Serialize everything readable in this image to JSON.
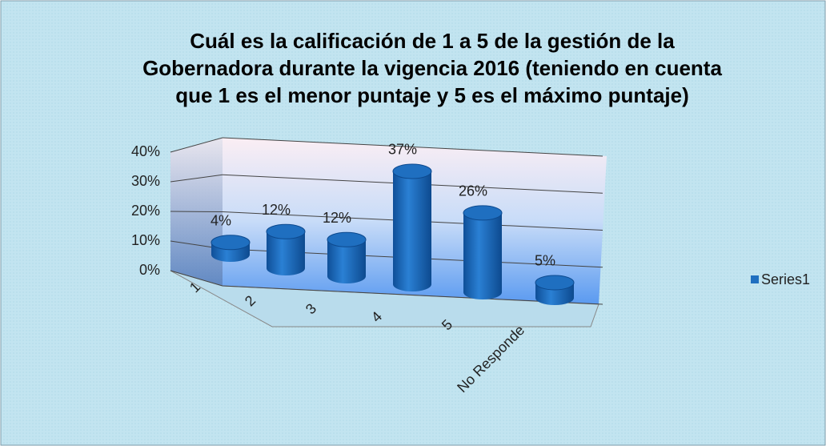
{
  "chart_data": {
    "type": "bar3d",
    "title": "Cuál es la calificación de 1 a 5 de la gestión de la Gobernadora durante la vigencia 2016 (teniendo en cuenta que 1 es el menor puntaje y 5 es el máximo puntaje)",
    "categories": [
      "1",
      "2",
      "3",
      "4",
      "5",
      "No Responde"
    ],
    "series": [
      {
        "name": "Series1",
        "color": "#1f6fc0",
        "values": [
          4,
          12,
          12,
          37,
          26,
          5
        ],
        "value_labels": [
          "4%",
          "12%",
          "12%",
          "37%",
          "26%",
          "5%"
        ]
      }
    ],
    "ylim": [
      0,
      40
    ],
    "yticks": [
      {
        "value": 0,
        "label": "0%"
      },
      {
        "value": 10,
        "label": "10%"
      },
      {
        "value": 20,
        "label": "20%"
      },
      {
        "value": 30,
        "label": "30%"
      },
      {
        "value": 40,
        "label": "40%"
      }
    ],
    "grid": true,
    "legend": "right"
  }
}
